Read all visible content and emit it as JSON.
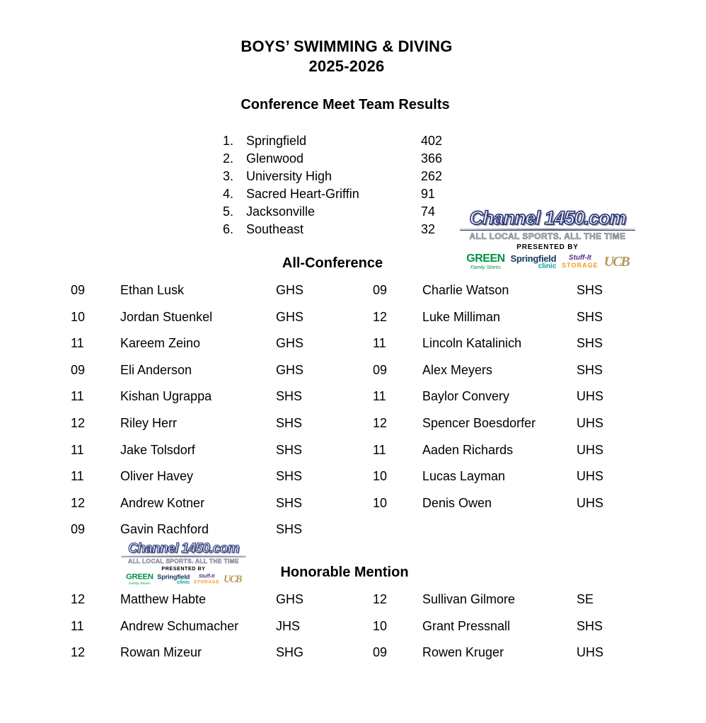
{
  "title": {
    "line1": "BOYS’ SWIMMING & DIVING",
    "line2": "2025-2026"
  },
  "team_results": {
    "heading": "Conference Meet Team Results",
    "teams": [
      {
        "rank": "1.",
        "name": "Springfield",
        "score": "402"
      },
      {
        "rank": "2.",
        "name": "Glenwood",
        "score": "366"
      },
      {
        "rank": "3.",
        "name": "University High",
        "score": "262"
      },
      {
        "rank": "4.",
        "name": "Sacred Heart-Griffin",
        "score": "91"
      },
      {
        "rank": "5.",
        "name": "Jacksonville",
        "score": "74"
      },
      {
        "rank": "6.",
        "name": "Southeast",
        "score": "32"
      }
    ]
  },
  "all_conference": {
    "heading": "All-Conference",
    "left": [
      {
        "grade": "09",
        "name": "Ethan Lusk",
        "school": "GHS"
      },
      {
        "grade": "10",
        "name": "Jordan Stuenkel",
        "school": "GHS"
      },
      {
        "grade": "11",
        "name": "Kareem Zeino",
        "school": "GHS"
      },
      {
        "grade": "09",
        "name": "Eli Anderson",
        "school": "GHS"
      },
      {
        "grade": "11",
        "name": "Kishan Ugrappa",
        "school": "SHS"
      },
      {
        "grade": "12",
        "name": "Riley Herr",
        "school": "SHS"
      },
      {
        "grade": "11",
        "name": "Jake Tolsdorf",
        "school": "SHS"
      },
      {
        "grade": "11",
        "name": "Oliver Havey",
        "school": "SHS"
      },
      {
        "grade": "12",
        "name": "Andrew Kotner",
        "school": "SHS"
      },
      {
        "grade": "09",
        "name": "Gavin Rachford",
        "school": "SHS"
      }
    ],
    "right": [
      {
        "grade": "09",
        "name": "Charlie Watson",
        "school": "SHS"
      },
      {
        "grade": "12",
        "name": "Luke Milliman",
        "school": "SHS"
      },
      {
        "grade": "11",
        "name": "Lincoln Katalinich",
        "school": "SHS"
      },
      {
        "grade": "09",
        "name": "Alex Meyers",
        "school": "SHS"
      },
      {
        "grade": "11",
        "name": "Baylor Convery",
        "school": "UHS"
      },
      {
        "grade": "12",
        "name": "Spencer Boesdorfer",
        "school": "UHS"
      },
      {
        "grade": "11",
        "name": "Aaden Richards",
        "school": "UHS"
      },
      {
        "grade": "10",
        "name": "Lucas Layman",
        "school": "UHS"
      },
      {
        "grade": "10",
        "name": "Denis Owen",
        "school": "UHS"
      }
    ]
  },
  "honorable_mention": {
    "heading": "Honorable Mention",
    "left": [
      {
        "grade": "12",
        "name": "Matthew Habte",
        "school": "GHS"
      },
      {
        "grade": "11",
        "name": "Andrew Schumacher",
        "school": "JHS"
      },
      {
        "grade": "12",
        "name": "Rowan Mizeur",
        "school": "SHG"
      }
    ],
    "right": [
      {
        "grade": "12",
        "name": "Sullivan Gilmore",
        "school": "SE"
      },
      {
        "grade": "10",
        "name": "Grant Pressnall",
        "school": "SHS"
      },
      {
        "grade": "09",
        "name": "Rowen Kruger",
        "school": "UHS"
      }
    ]
  },
  "channel_logo": {
    "brand": "Channel 1450.com",
    "tagline": "ALL LOCAL SPORTS. ALL THE TIME",
    "presented_by": "PRESENTED BY",
    "sponsors": {
      "green": {
        "name": "GREEN",
        "sub": "Family Stores",
        "color": "#009245"
      },
      "springfield": {
        "name": "Springfield",
        "sub": "clinic",
        "name_color": "#15375a",
        "sub_color": "#00a79d"
      },
      "stuffit": {
        "name": "Stuff-It",
        "sub": "STORAGE",
        "name_color": "#5b2d8e",
        "sub_color": "#f7941d"
      },
      "ucb": {
        "name": "UCB",
        "color": "#b5985a"
      }
    },
    "colors": {
      "brand_fill": "#e6e8f2",
      "brand_outline": "#1b2a6e",
      "tagline_fill": "#c6c9d4",
      "tagline_outline": "#60636e"
    }
  }
}
